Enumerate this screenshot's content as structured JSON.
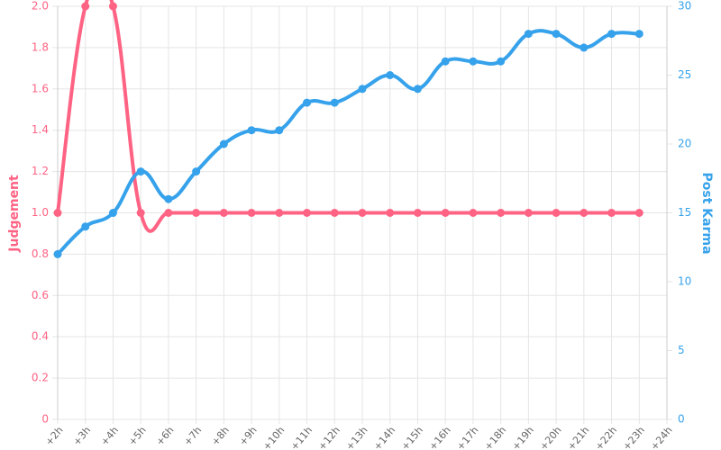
{
  "chart_data": {
    "type": "line",
    "categories": [
      "+2h",
      "+3h",
      "+4h",
      "+5h",
      "+6h",
      "+7h",
      "+8h",
      "+9h",
      "+10h",
      "+11h",
      "+12h",
      "+13h",
      "+14h",
      "+15h",
      "+16h",
      "+17h",
      "+18h",
      "+19h",
      "+20h",
      "+21h",
      "+22h",
      "+23h",
      "+24h"
    ],
    "y_label": "Judgement",
    "y2_label": "Post Karma",
    "series": [
      {
        "name": "Judgement",
        "color": "#ff6384",
        "values": [
          1,
          2,
          2,
          1,
          1,
          1,
          1,
          1,
          1,
          1,
          1,
          1,
          1,
          1,
          1,
          1,
          1,
          1,
          1,
          1,
          1,
          1,
          null
        ]
      },
      {
        "name": "Post Karma",
        "color": "#36a2eb",
        "axis": "y2",
        "values": [
          12,
          14,
          15,
          18,
          16,
          18,
          20,
          21,
          21,
          23,
          23,
          24,
          25,
          24,
          26,
          26,
          26,
          28,
          28,
          27,
          28,
          28,
          null
        ]
      }
    ],
    "ylim": [
      0,
      2
    ],
    "yticks": [
      0,
      0.2,
      0.4,
      0.6,
      0.8,
      {
        "value": 1,
        "label": "1.0"
      },
      1.2,
      1.4,
      1.6,
      1.8,
      {
        "value": 2,
        "label": "2.0"
      }
    ],
    "y2lim": [
      0,
      30
    ],
    "y2ticks": [
      0,
      5,
      10,
      15,
      20,
      25,
      30
    ],
    "grid": true
  }
}
